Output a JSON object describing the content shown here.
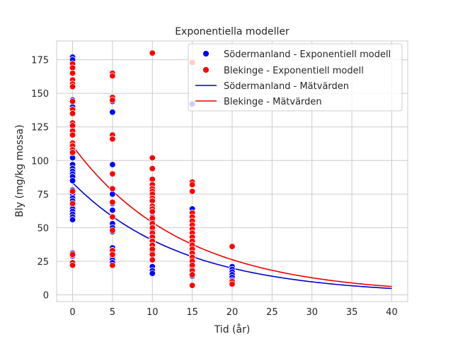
{
  "chart_data": {
    "type": "scatter",
    "title": "Exponentiella modeller",
    "xlabel": "Tid (år)",
    "ylabel": "Bly (mg/kg mossa)",
    "xlim": [
      -2,
      42
    ],
    "ylim": [
      -5,
      189
    ],
    "xticks": [
      0,
      5,
      10,
      15,
      20,
      25,
      30,
      35,
      40
    ],
    "yticks": [
      0,
      25,
      50,
      75,
      100,
      125,
      150,
      175
    ],
    "grid": true,
    "legend_position": "top-right",
    "scatter_series": [
      {
        "name": "Södermanland - Exponentiell modell",
        "color": "#0000ff",
        "points": [
          [
            0,
            177
          ],
          [
            0,
            175
          ],
          [
            0,
            170
          ],
          [
            0,
            145
          ],
          [
            0,
            140
          ],
          [
            0,
            128
          ],
          [
            0,
            125
          ],
          [
            0,
            112
          ],
          [
            0,
            110
          ],
          [
            0,
            105
          ],
          [
            0,
            102
          ],
          [
            0,
            97
          ],
          [
            0,
            94
          ],
          [
            0,
            92
          ],
          [
            0,
            90
          ],
          [
            0,
            88
          ],
          [
            0,
            85
          ],
          [
            0,
            78
          ],
          [
            0,
            75
          ],
          [
            0,
            72
          ],
          [
            0,
            70
          ],
          [
            0,
            68
          ],
          [
            0,
            66
          ],
          [
            0,
            64
          ],
          [
            0,
            62
          ],
          [
            0,
            60
          ],
          [
            0,
            58
          ],
          [
            0,
            56
          ],
          [
            0,
            31
          ],
          [
            0,
            29
          ],
          [
            5,
            144
          ],
          [
            5,
            136
          ],
          [
            5,
            118
          ],
          [
            5,
            116
          ],
          [
            5,
            97
          ],
          [
            5,
            75
          ],
          [
            5,
            68
          ],
          [
            5,
            63
          ],
          [
            5,
            53
          ],
          [
            5,
            50
          ],
          [
            5,
            47
          ],
          [
            5,
            35
          ],
          [
            5,
            33
          ],
          [
            5,
            31
          ],
          [
            5,
            28
          ],
          [
            5,
            26
          ],
          [
            5,
            24
          ],
          [
            10,
            82
          ],
          [
            10,
            76
          ],
          [
            10,
            72
          ],
          [
            10,
            70
          ],
          [
            10,
            66
          ],
          [
            10,
            62
          ],
          [
            10,
            58
          ],
          [
            10,
            55
          ],
          [
            10,
            52
          ],
          [
            10,
            48
          ],
          [
            10,
            44
          ],
          [
            10,
            42
          ],
          [
            10,
            40
          ],
          [
            10,
            38
          ],
          [
            10,
            36
          ],
          [
            10,
            34
          ],
          [
            10,
            32
          ],
          [
            10,
            26
          ],
          [
            10,
            21
          ],
          [
            10,
            18
          ],
          [
            10,
            16
          ],
          [
            15,
            142
          ],
          [
            15,
            64
          ],
          [
            15,
            60
          ],
          [
            15,
            56
          ],
          [
            15,
            52
          ],
          [
            15,
            48
          ],
          [
            15,
            44
          ],
          [
            15,
            40
          ],
          [
            15,
            36
          ],
          [
            15,
            32
          ],
          [
            15,
            30
          ],
          [
            15,
            28
          ],
          [
            15,
            26
          ],
          [
            15,
            24
          ],
          [
            15,
            22
          ],
          [
            15,
            20
          ],
          [
            15,
            14
          ],
          [
            20,
            21
          ],
          [
            20,
            19
          ],
          [
            20,
            17
          ],
          [
            20,
            15
          ],
          [
            20,
            13
          ],
          [
            20,
            11
          ]
        ]
      },
      {
        "name": "Blekinge - Exponentiell modell",
        "color": "#ff0000",
        "points": [
          [
            0,
            172
          ],
          [
            0,
            169
          ],
          [
            0,
            165
          ],
          [
            0,
            160
          ],
          [
            0,
            157
          ],
          [
            0,
            155
          ],
          [
            0,
            144
          ],
          [
            0,
            138
          ],
          [
            0,
            135
          ],
          [
            0,
            128
          ],
          [
            0,
            126
          ],
          [
            0,
            122
          ],
          [
            0,
            119
          ],
          [
            0,
            113
          ],
          [
            0,
            111
          ],
          [
            0,
            108
          ],
          [
            0,
            106
          ],
          [
            0,
            77
          ],
          [
            0,
            68
          ],
          [
            0,
            30
          ],
          [
            0,
            24
          ],
          [
            0,
            22
          ],
          [
            5,
            165
          ],
          [
            5,
            163
          ],
          [
            5,
            147
          ],
          [
            5,
            145
          ],
          [
            5,
            119
          ],
          [
            5,
            116
          ],
          [
            5,
            90
          ],
          [
            5,
            79
          ],
          [
            5,
            69
          ],
          [
            5,
            58
          ],
          [
            5,
            48
          ],
          [
            5,
            33
          ],
          [
            5,
            30
          ],
          [
            5,
            22
          ],
          [
            10,
            180
          ],
          [
            10,
            102
          ],
          [
            10,
            94
          ],
          [
            10,
            86
          ],
          [
            10,
            82
          ],
          [
            10,
            79
          ],
          [
            10,
            77
          ],
          [
            10,
            75
          ],
          [
            10,
            72
          ],
          [
            10,
            70
          ],
          [
            10,
            66
          ],
          [
            10,
            64
          ],
          [
            10,
            62
          ],
          [
            10,
            57
          ],
          [
            10,
            53
          ],
          [
            10,
            50
          ],
          [
            10,
            46
          ],
          [
            10,
            43
          ],
          [
            10,
            40
          ],
          [
            10,
            37
          ],
          [
            10,
            34
          ],
          [
            10,
            30
          ],
          [
            10,
            26
          ],
          [
            15,
            173
          ],
          [
            15,
            84
          ],
          [
            15,
            82
          ],
          [
            15,
            77
          ],
          [
            15,
            61
          ],
          [
            15,
            58
          ],
          [
            15,
            55
          ],
          [
            15,
            52
          ],
          [
            15,
            49
          ],
          [
            15,
            46
          ],
          [
            15,
            43
          ],
          [
            15,
            40
          ],
          [
            15,
            37
          ],
          [
            15,
            34
          ],
          [
            15,
            31
          ],
          [
            15,
            28
          ],
          [
            15,
            25
          ],
          [
            15,
            22
          ],
          [
            15,
            18
          ],
          [
            15,
            15
          ],
          [
            15,
            7
          ],
          [
            20,
            36
          ],
          [
            20,
            10
          ],
          [
            20,
            8
          ]
        ]
      }
    ],
    "line_series": [
      {
        "name": "Södermanland - Mätvärden",
        "color": "#0000cc",
        "a": 83.5,
        "k": 0.0718,
        "x_range": [
          0,
          40
        ]
      },
      {
        "name": "Blekinge - Mätvärden",
        "color": "#ee0000",
        "a": 111.0,
        "k": 0.0722,
        "x_range": [
          0,
          40
        ]
      }
    ]
  }
}
